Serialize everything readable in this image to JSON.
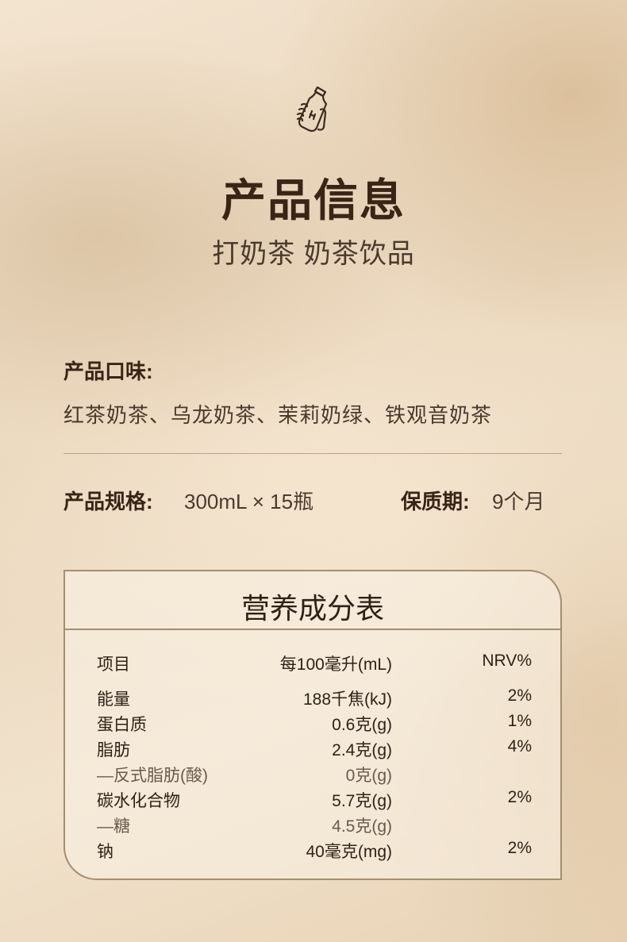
{
  "header": {
    "icon": "hand-holding-bottle-icon",
    "title": "产品信息",
    "subtitle": "打奶茶 奶茶饮品"
  },
  "flavor": {
    "label": "产品口味:",
    "value": "红茶奶茶、乌龙奶茶、茉莉奶绿、铁观音奶茶"
  },
  "spec": {
    "label": "产品规格:",
    "value": "300mL × 15瓶"
  },
  "shelf_life": {
    "label": "保质期:",
    "value": "9个月"
  },
  "nutrition": {
    "title": "营养成分表",
    "headers": [
      "项目",
      "每100毫升(mL)",
      "NRV%"
    ],
    "rows": [
      {
        "item": "能量",
        "amount": "188千焦(kJ)",
        "nrv": "2%"
      },
      {
        "item": "蛋白质",
        "amount": "0.6克(g)",
        "nrv": "1%"
      },
      {
        "item": "脂肪",
        "amount": "2.4克(g)",
        "nrv": "4%"
      },
      {
        "item": "—反式脂肪(酸)",
        "amount": "0克(g)",
        "nrv": ""
      },
      {
        "item": "碳水化合物",
        "amount": "5.7克(g)",
        "nrv": "2%"
      },
      {
        "item": "—糖",
        "amount": "4.5克(g)",
        "nrv": ""
      },
      {
        "item": "钠",
        "amount": "40毫克(mg)",
        "nrv": "2%"
      }
    ]
  },
  "colors": {
    "text": "#3a2417",
    "border": "#a48e6e"
  }
}
